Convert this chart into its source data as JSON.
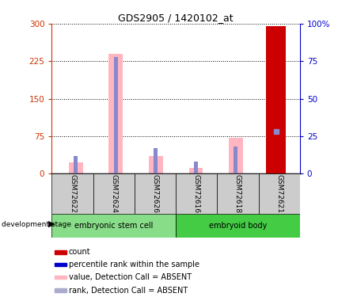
{
  "title": "GDS2905 / 1420102_at",
  "samples": [
    "GSM72622",
    "GSM72624",
    "GSM72626",
    "GSM72616",
    "GSM72618",
    "GSM72621"
  ],
  "pink_values": [
    22,
    240,
    35,
    12,
    72,
    295
  ],
  "blue_values": [
    12,
    78,
    17,
    8,
    18,
    28
  ],
  "red_value": 295,
  "red_index": 5,
  "blue_square_index": 5,
  "blue_square_value": 28,
  "red_bar_color": "#CC0000",
  "pink_color": "#FFB6C1",
  "blue_color": "#8888CC",
  "left_ylim": [
    0,
    300
  ],
  "right_ylim": [
    0,
    100
  ],
  "left_yticks": [
    0,
    75,
    150,
    225,
    300
  ],
  "right_yticks": [
    0,
    25,
    50,
    75,
    100
  ],
  "right_yticklabels": [
    "0",
    "25",
    "50",
    "75",
    "100%"
  ],
  "ylabel_left_color": "#CC3300",
  "ylabel_right_color": "#0000CC",
  "group_label": "development stage",
  "group1_name": "embryonic stem cell",
  "group1_color": "#88DD88",
  "group2_name": "embryoid body",
  "group2_color": "#44CC44",
  "sample_box_color": "#CCCCCC",
  "legend_items": [
    {
      "color": "#CC0000",
      "label": "count"
    },
    {
      "color": "#0000CC",
      "label": "percentile rank within the sample"
    },
    {
      "color": "#FFB6C1",
      "label": "value, Detection Call = ABSENT"
    },
    {
      "color": "#AAAACC",
      "label": "rank, Detection Call = ABSENT"
    }
  ],
  "pink_bar_width": 0.35,
  "blue_bar_width": 0.1,
  "red_bar_width": 0.5,
  "dotted_line_color": "black"
}
